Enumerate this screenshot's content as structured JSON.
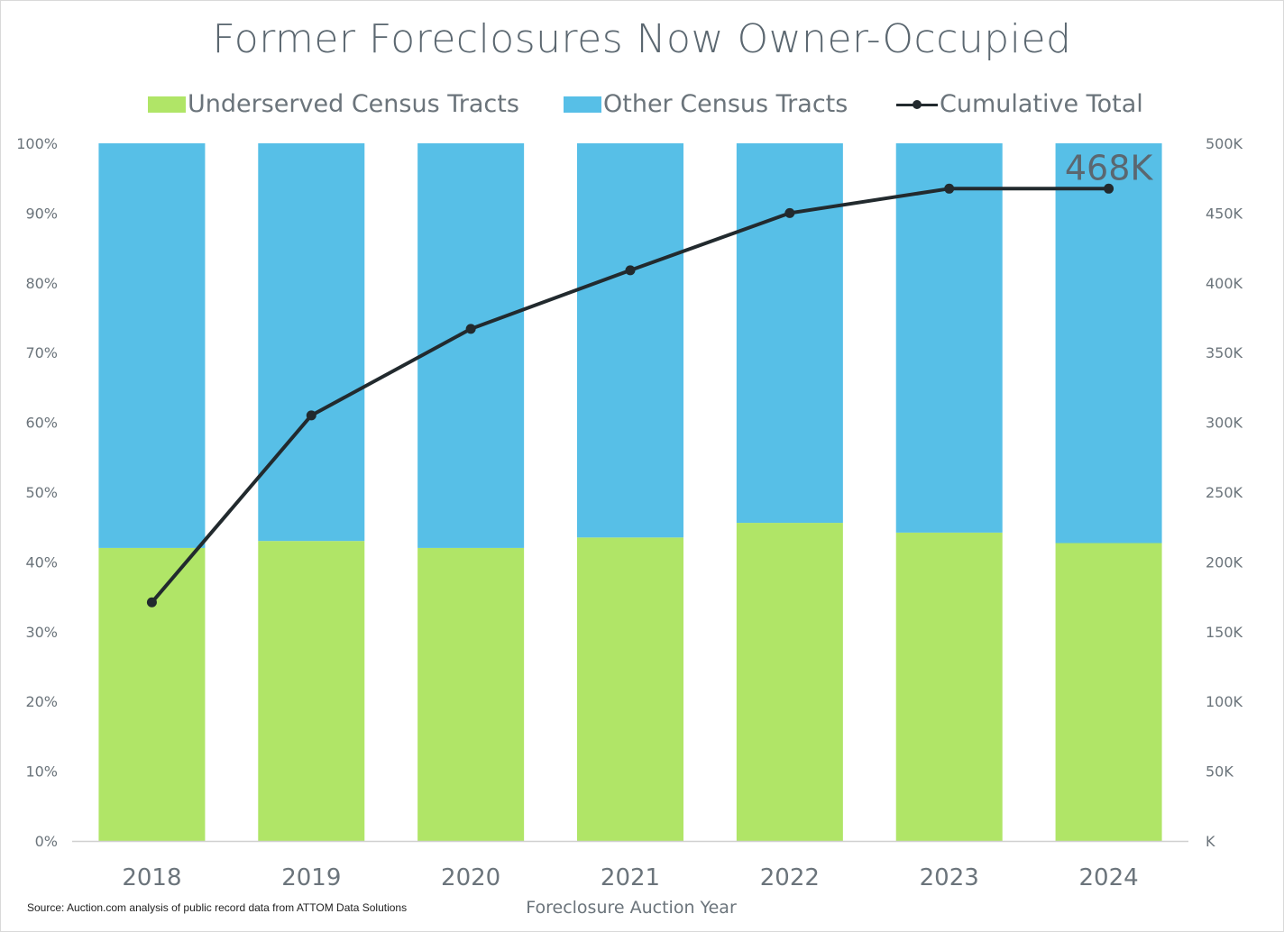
{
  "chart_data": {
    "type": "bar",
    "title": "Former Foreclosures Now Owner-Occupied",
    "xlabel": "Foreclosure Auction Year",
    "categories": [
      "2018",
      "2019",
      "2020",
      "2021",
      "2022",
      "2023",
      "2024"
    ],
    "series": [
      {
        "name": "Underserved Census Tracts",
        "type": "stacked-bar",
        "axis": "left",
        "color": "#b0e567",
        "values": [
          42,
          43,
          42,
          43.5,
          45.6,
          44.2,
          42.7
        ]
      },
      {
        "name": "Other Census Tracts",
        "type": "stacked-bar",
        "axis": "left",
        "color": "#57bfe7",
        "values": [
          58,
          57,
          58,
          56.5,
          54.4,
          55.8,
          57.3
        ]
      },
      {
        "name": "Cumulative Total",
        "type": "line",
        "axis": "right",
        "color": "#222a2e",
        "values": [
          171000,
          305000,
          367000,
          409000,
          450000,
          467500,
          467500
        ]
      }
    ],
    "y_left": {
      "ylim": [
        0,
        100
      ],
      "ticks": [
        0,
        10,
        20,
        30,
        40,
        50,
        60,
        70,
        80,
        90,
        100
      ],
      "tick_labels": [
        "0%",
        "10%",
        "20%",
        "30%",
        "40%",
        "50%",
        "60%",
        "70%",
        "80%",
        "90%",
        "100%"
      ]
    },
    "y_right": {
      "ylim": [
        0,
        500000
      ],
      "ticks": [
        0,
        50000,
        100000,
        150000,
        200000,
        250000,
        300000,
        350000,
        400000,
        450000,
        500000
      ],
      "tick_labels": [
        "K",
        "50K",
        "100K",
        "150K",
        "200K",
        "250K",
        "300K",
        "350K",
        "400K",
        "450K",
        "500K"
      ]
    },
    "annotation": {
      "text": "468K",
      "category": "2024"
    },
    "legend_position": "top",
    "grid": false
  },
  "source_note": "Source: Auction.com analysis of public record data from ATTOM Data Solutions"
}
